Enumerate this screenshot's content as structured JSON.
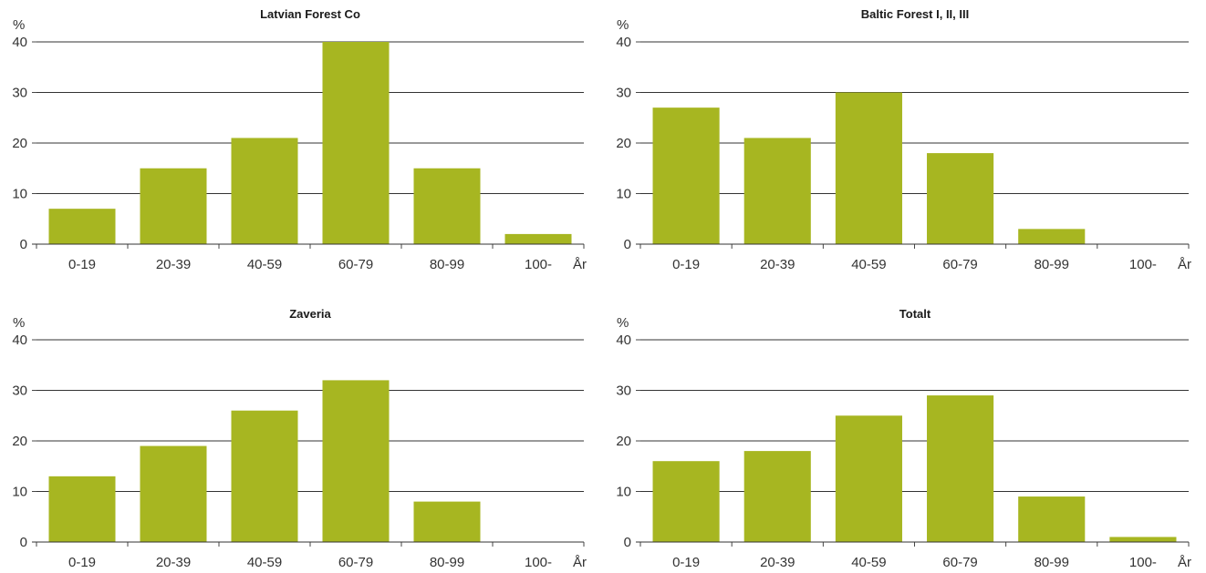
{
  "colors": {
    "bar": "#a7b621",
    "axis": "#333333",
    "grid": "#333333"
  },
  "chart_data": [
    {
      "type": "bar",
      "title": "Latvian Forest Co",
      "ylabel": "%",
      "xlabel": "År",
      "categories": [
        "0-19",
        "20-39",
        "40-59",
        "60-79",
        "80-99",
        "100-"
      ],
      "values": [
        7,
        15,
        21,
        40,
        15,
        2
      ],
      "ylim": [
        0,
        40
      ],
      "yticks": [
        "0",
        "10",
        "20",
        "30",
        "40"
      ],
      "grid": true,
      "legend": "none"
    },
    {
      "type": "bar",
      "title": "Baltic Forest I, II, III",
      "ylabel": "%",
      "xlabel": "År",
      "categories": [
        "0-19",
        "20-39",
        "40-59",
        "60-79",
        "80-99",
        "100-"
      ],
      "values": [
        27,
        21,
        30,
        18,
        3,
        0
      ],
      "ylim": [
        0,
        40
      ],
      "yticks": [
        "0",
        "10",
        "20",
        "30",
        "40"
      ],
      "grid": true,
      "legend": "none"
    },
    {
      "type": "bar",
      "title": "Zaveria",
      "ylabel": "%",
      "xlabel": "År",
      "categories": [
        "0-19",
        "20-39",
        "40-59",
        "60-79",
        "80-99",
        "100-"
      ],
      "values": [
        13,
        19,
        26,
        32,
        8,
        0
      ],
      "ylim": [
        0,
        40
      ],
      "yticks": [
        "0",
        "10",
        "20",
        "30",
        "40"
      ],
      "grid": true,
      "legend": "none"
    },
    {
      "type": "bar",
      "title": "Totalt",
      "ylabel": "%",
      "xlabel": "År",
      "categories": [
        "0-19",
        "20-39",
        "40-59",
        "60-79",
        "80-99",
        "100-"
      ],
      "values": [
        16,
        18,
        25,
        29,
        9,
        1
      ],
      "ylim": [
        0,
        40
      ],
      "yticks": [
        "0",
        "10",
        "20",
        "30",
        "40"
      ],
      "grid": true,
      "legend": "none"
    }
  ]
}
